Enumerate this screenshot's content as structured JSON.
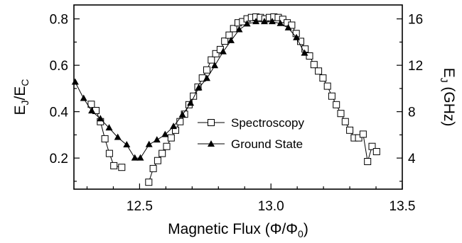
{
  "chart_data": {
    "type": "scatter",
    "xlabel": {
      "main": "Magnetic Flux (Φ/Φ",
      "sub": "0",
      "tail": ")"
    },
    "ylabel_left": {
      "main": "E",
      "sub1": "J",
      "mid": "/E",
      "sub2": "C"
    },
    "ylabel_right": {
      "main": "E",
      "sub": "J",
      "tail": " (GHz)"
    },
    "xlim": [
      12.25,
      13.5
    ],
    "ylim_left": [
      0.066,
      0.86
    ],
    "ylim_right": [
      1.32,
      17.2
    ],
    "x_ticks": [
      12.5,
      13.0,
      13.5
    ],
    "x_tick_labels": [
      "12.5",
      "13.0",
      "13.5"
    ],
    "y_left_ticks": [
      0.2,
      0.4,
      0.6,
      0.8
    ],
    "y_left_tick_labels": [
      "0.2",
      "0.4",
      "0.6",
      "0.8"
    ],
    "y_right_ticks": [
      4,
      8,
      12,
      16
    ],
    "y_right_tick_labels": [
      "4",
      "8",
      "12",
      "16"
    ],
    "legend": {
      "position": "center",
      "entries": [
        "Spectroscopy",
        "Ground State"
      ]
    },
    "series": [
      {
        "name": "Spectroscopy",
        "marker": "open-square",
        "segments": [
          [
            [
              12.316,
              0.432
            ],
            [
              12.334,
              0.405
            ],
            [
              12.351,
              0.357
            ],
            [
              12.368,
              0.283
            ],
            [
              12.385,
              0.22
            ],
            [
              12.402,
              0.167
            ],
            [
              12.432,
              0.16
            ]
          ],
          [
            [
              12.535,
              0.096
            ],
            [
              12.552,
              0.155
            ],
            [
              12.569,
              0.189
            ],
            [
              12.586,
              0.22
            ],
            [
              12.603,
              0.25
            ],
            [
              12.62,
              0.287
            ],
            [
              12.637,
              0.32
            ],
            [
              12.654,
              0.357
            ],
            [
              12.671,
              0.389
            ],
            [
              12.688,
              0.43
            ],
            [
              12.705,
              0.467
            ],
            [
              12.722,
              0.506
            ],
            [
              12.739,
              0.545
            ],
            [
              12.756,
              0.58
            ],
            [
              12.773,
              0.623
            ],
            [
              12.79,
              0.65
            ],
            [
              12.807,
              0.668
            ],
            [
              12.824,
              0.704
            ],
            [
              12.841,
              0.73
            ],
            [
              12.858,
              0.758
            ],
            [
              12.875,
              0.783
            ],
            [
              12.892,
              0.788
            ],
            [
              12.909,
              0.8
            ],
            [
              12.926,
              0.806
            ],
            [
              12.943,
              0.808
            ],
            [
              12.96,
              0.806
            ],
            [
              12.977,
              0.8
            ],
            [
              12.994,
              0.806
            ],
            [
              13.011,
              0.808
            ],
            [
              13.028,
              0.806
            ],
            [
              13.045,
              0.798
            ],
            [
              13.062,
              0.783
            ],
            [
              13.079,
              0.773
            ],
            [
              13.096,
              0.737
            ],
            [
              13.113,
              0.703
            ],
            [
              13.13,
              0.67
            ],
            [
              13.147,
              0.64
            ],
            [
              13.164,
              0.603
            ],
            [
              13.181,
              0.575
            ],
            [
              13.198,
              0.545
            ],
            [
              13.215,
              0.51
            ],
            [
              13.232,
              0.467
            ],
            [
              13.249,
              0.43
            ],
            [
              13.266,
              0.392
            ],
            [
              13.283,
              0.357
            ],
            [
              13.3,
              0.32
            ],
            [
              13.317,
              0.287
            ],
            [
              13.334,
              0.287
            ],
            [
              13.351,
              0.303
            ],
            [
              13.368,
              0.185
            ],
            [
              13.385,
              0.25
            ],
            [
              13.402,
              0.228
            ]
          ]
        ]
      },
      {
        "name": "Ground State",
        "marker": "filled-triangle",
        "segments": [
          [
            [
              12.255,
              0.527
            ],
            [
              12.287,
              0.457
            ],
            [
              12.318,
              0.403
            ],
            [
              12.351,
              0.369
            ],
            [
              12.384,
              0.33
            ],
            [
              12.417,
              0.289
            ],
            [
              12.451,
              0.257
            ],
            [
              12.482,
              0.2
            ],
            [
              12.503,
              0.2
            ],
            [
              12.536,
              0.258
            ],
            [
              12.566,
              0.278
            ],
            [
              12.597,
              0.301
            ],
            [
              12.629,
              0.336
            ],
            [
              12.663,
              0.386
            ],
            [
              12.694,
              0.436
            ],
            [
              12.725,
              0.503
            ],
            [
              12.756,
              0.543
            ],
            [
              12.786,
              0.598
            ],
            [
              12.818,
              0.658
            ],
            [
              12.848,
              0.706
            ],
            [
              12.879,
              0.753
            ],
            [
              12.909,
              0.778
            ],
            [
              12.943,
              0.788
            ],
            [
              12.975,
              0.788
            ],
            [
              13.005,
              0.788
            ],
            [
              13.036,
              0.78
            ],
            [
              13.066,
              0.761
            ],
            [
              13.097,
              0.719
            ],
            [
              13.128,
              0.652
            ]
          ]
        ]
      }
    ]
  }
}
